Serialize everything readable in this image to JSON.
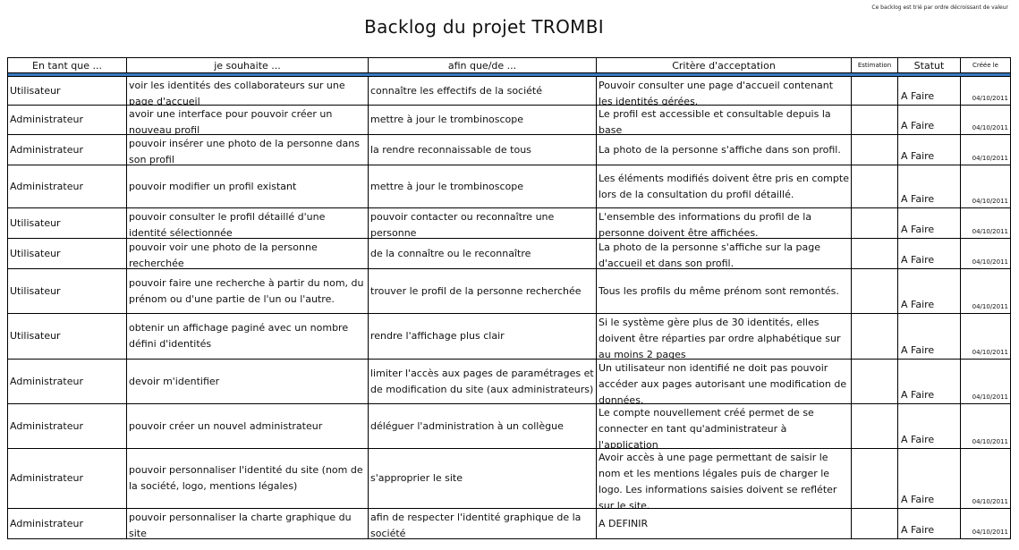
{
  "note": "Ce backlog est trié par ordre décroissant de valeur",
  "title": "Backlog du projet TROMBI",
  "headers": {
    "role": "En tant que ...",
    "souhaite": "je souhaite ...",
    "afin": "afin que/de ...",
    "critere": "Critère d'acceptation",
    "estimation": "Estimation",
    "statut": "Statut",
    "cree": "Créée le"
  },
  "rows": [
    {
      "role": "Utilisateur",
      "souhaite": "voir les identités des collaborateurs sur une page d'accueil",
      "afin": "connaître les effectifs de la société",
      "critere": "Pouvoir consulter une page d'accueil contenant les identités gérées.",
      "estimation": "",
      "statut": "A Faire",
      "date": "04/10/2011"
    },
    {
      "role": "Administrateur",
      "souhaite": "avoir une interface pour pouvoir créer un nouveau profil",
      "afin": "mettre à jour le trombinoscope",
      "critere": "Le profil est accessible et consultable depuis la base",
      "estimation": "",
      "statut": "A Faire",
      "date": "04/10/2011"
    },
    {
      "role": "Administrateur",
      "souhaite": "pouvoir insérer une photo de la personne dans son profil",
      "afin": "la rendre reconnaissable de tous",
      "critere": "La photo de la personne s'affiche dans son profil.",
      "estimation": "",
      "statut": "A Faire",
      "date": "04/10/2011"
    },
    {
      "role": "Administrateur",
      "souhaite": "pouvoir modifier un profil existant",
      "afin": "mettre à jour le trombinoscope",
      "critere": "Les éléments modifiés doivent être pris en compte lors de la consultation du profil détaillé.",
      "estimation": "",
      "statut": "A Faire",
      "date": "04/10/2011"
    },
    {
      "role": "Utilisateur",
      "souhaite": "pouvoir consulter le profil détaillé d'une identité sélectionnée",
      "afin": "pouvoir contacter ou reconnaître une personne",
      "critere": "L'ensemble des informations du profil de la personne doivent être affichées.",
      "estimation": "",
      "statut": "A Faire",
      "date": "04/10/2011"
    },
    {
      "role": "Utilisateur",
      "souhaite": "pouvoir voir une photo de la personne recherchée",
      "afin": "de la connaître ou le reconnaître",
      "critere": "La photo de la personne s'affiche sur la page d'accueil et dans son profil.",
      "estimation": "",
      "statut": "A Faire",
      "date": "04/10/2011"
    },
    {
      "role": "Utilisateur",
      "souhaite": "pouvoir faire une recherche à partir du nom, du prénom ou d'une partie de l'un ou l'autre.",
      "afin": "trouver le profil de la personne recherchée",
      "critere": "Tous les profils du même prénom sont remontés.",
      "estimation": "",
      "statut": "A Faire",
      "date": "04/10/2011"
    },
    {
      "role": "Utilisateur",
      "souhaite": "obtenir un affichage paginé avec un nombre défini d'identités",
      "afin": "rendre l'affichage plus clair",
      "critere": "Si le système gère plus de 30 identités, elles doivent être réparties par ordre alphabétique sur au moins 2 pages",
      "estimation": "",
      "statut": "A Faire",
      "date": "04/10/2011"
    },
    {
      "role": "Administrateur",
      "souhaite": "devoir m'identifier",
      "afin": "limiter l'accès aux pages de paramétrages et de modification du site (aux administrateurs)",
      "critere": "Un utilisateur non identifié ne doit pas pouvoir accéder aux pages autorisant une modification de données.",
      "estimation": "",
      "statut": "A Faire",
      "date": "04/10/2011"
    },
    {
      "role": "Administrateur",
      "souhaite": "pouvoir créer un nouvel administrateur",
      "afin": "déléguer l'administration à un collègue",
      "critere": "Le compte nouvellement créé permet de se connecter en tant qu'administrateur à l'application",
      "estimation": "",
      "statut": "A Faire",
      "date": "04/10/2011"
    },
    {
      "role": "Administrateur",
      "souhaite": "pouvoir personnaliser l'identité du site (nom de la société, logo, mentions légales)",
      "afin": "s'approprier le site",
      "critere": "Avoir accès à une page permettant de saisir le nom et les mentions légales puis de charger le logo. Les informations saisies doivent se refléter sur le site.",
      "estimation": "",
      "statut": "A Faire",
      "date": "04/10/2011"
    },
    {
      "role": "Administrateur",
      "souhaite": "pouvoir personnaliser la charte graphique du site",
      "afin": "afin de respecter l'identité graphique de la société",
      "critere": "A DEFINIR",
      "estimation": "",
      "statut": "A Faire",
      "date": "04/10/2011"
    }
  ]
}
